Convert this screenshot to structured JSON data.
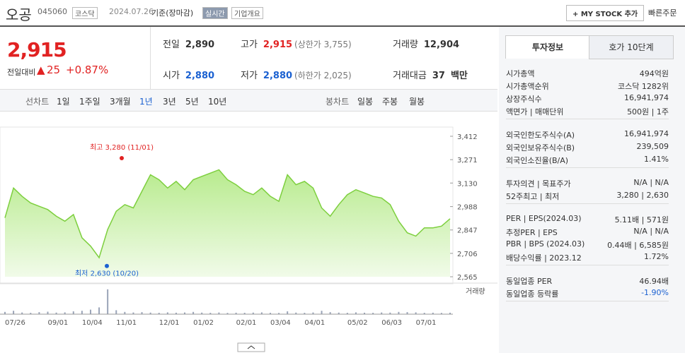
{
  "header": {
    "name": "오공",
    "code": "045060",
    "market": "코스닥",
    "date": "2024.07.26",
    "basis": "기준(장마감)",
    "realtime": "실시간",
    "overview": "기업개요",
    "mystock": "+ MY STOCK 추가",
    "quick_order": "빠른주문"
  },
  "quote": {
    "price": "2,915",
    "change_label": "전일대비",
    "change": "25",
    "rate": "+0.87%",
    "cells": [
      {
        "label": "전일",
        "value": "2,890"
      },
      {
        "label": "고가",
        "value": "2,915",
        "note": "(상한가 3,755)"
      },
      {
        "label": "거래량",
        "value": "12,904"
      },
      {
        "label": "시가",
        "value": "2,880"
      },
      {
        "label": "저가",
        "value": "2,880",
        "note": "(하한가 2,025)"
      },
      {
        "label": "거래대금",
        "value": "37",
        "unit": "백만"
      }
    ]
  },
  "periods": {
    "line_label": "선차트",
    "line": [
      "1일",
      "1주일",
      "3개월",
      "1년",
      "3년",
      "5년",
      "10년"
    ],
    "candle_label": "봉차트",
    "candle": [
      "일봉",
      "주봉",
      "월봉"
    ]
  },
  "chart_data": [
    {
      "type": "area",
      "color": "#7dcf3e",
      "categories": [
        "07/26",
        null,
        null,
        null,
        null,
        "09/01",
        null,
        null,
        null,
        "10/04",
        null,
        null,
        null,
        "11/01",
        null,
        null,
        null,
        null,
        "12/01",
        null,
        null,
        null,
        "01/02",
        null,
        null,
        null,
        null,
        "02/01",
        null,
        null,
        null,
        "03/04",
        null,
        null,
        null,
        "04/01",
        null,
        null,
        null,
        null,
        "05/02",
        null,
        null,
        null,
        "06/03",
        null,
        null,
        null,
        "07/01",
        null,
        null,
        null,
        null
      ],
      "values": [
        2920,
        3100,
        3050,
        3010,
        2990,
        2970,
        2930,
        2900,
        2940,
        2800,
        2750,
        2680,
        2850,
        2960,
        3000,
        2980,
        3080,
        3180,
        3150,
        3100,
        3140,
        3090,
        3150,
        3170,
        3190,
        3210,
        3150,
        3120,
        3080,
        3060,
        3100,
        3050,
        3020,
        3180,
        3120,
        3140,
        3100,
        2980,
        2930,
        3000,
        3060,
        3090,
        3070,
        3050,
        3040,
        3000,
        2900,
        2830,
        2810,
        2860,
        2860,
        2870,
        2915
      ],
      "ylim": [
        2565,
        3412
      ],
      "yticks": [
        {
          "value": 2565,
          "label": "2,565"
        },
        {
          "value": 2706,
          "label": "2,706"
        },
        {
          "value": 2847,
          "label": "2,847"
        },
        {
          "value": 2988,
          "label": "2,988"
        },
        {
          "value": 3130,
          "label": "3,130"
        },
        {
          "value": 3271,
          "label": "3,271"
        },
        {
          "value": 3412,
          "label": "3,412"
        }
      ],
      "annotations": [
        {
          "text": "최고 3,280 (11/01)",
          "value": 3280,
          "color": "#e12222"
        },
        {
          "text": "최저 2,630 (10/20)",
          "value": 2630,
          "color": "#1b61d1"
        }
      ]
    },
    {
      "type": "bar",
      "label": "거래량",
      "color": "#9aa4b8",
      "ylim": [
        0,
        250000
      ],
      "values": [
        20000,
        30000,
        15000,
        12000,
        18000,
        22000,
        14000,
        16000,
        25000,
        30000,
        40000,
        60000,
        220000,
        35000,
        20000,
        15000,
        18000,
        14000,
        12000,
        16000,
        13000,
        15000,
        20000,
        14000,
        12000,
        15000,
        11000,
        13000,
        12000,
        14000,
        16000,
        12000,
        11000,
        25000,
        14000,
        12000,
        15000,
        30000,
        18000,
        14000,
        12000,
        16000,
        13000,
        12000,
        15000,
        14000,
        20000,
        18000,
        16000,
        12000,
        13000,
        11000,
        12904
      ]
    }
  ],
  "info": {
    "tabs": [
      "투자정보",
      "호가 10단계"
    ],
    "sections": [
      [
        {
          "label": "시가총액",
          "value": "494억원"
        },
        {
          "label": "시가총액순위",
          "value": "코스닥 1282위"
        },
        {
          "label": "상장주식수",
          "value": "16,941,974"
        },
        {
          "label": "액면가 | 매매단위",
          "value": "500원 | 1주"
        }
      ],
      [
        {
          "label": "외국인한도주식수(A)",
          "value": "16,941,974"
        },
        {
          "label": "외국인보유주식수(B)",
          "value": "239,509"
        },
        {
          "label": "외국인소진율(B/A)",
          "value": "1.41%"
        }
      ],
      [
        {
          "label": "투자의견 | 목표주가",
          "value": "N/A | N/A"
        },
        {
          "label": "52주최고 | 최저",
          "value": "3,280 | 2,630"
        }
      ],
      [
        {
          "label": "PER | EPS(2024.03)",
          "value": "5.11배 | 571원"
        },
        {
          "label": "추정PER | EPS",
          "value": "N/A | N/A"
        },
        {
          "label": "PBR | BPS (2024.03)",
          "value": "0.44배 | 6,585원"
        },
        {
          "label": "배당수익률 | 2023.12",
          "value": "1.72%"
        }
      ],
      [
        {
          "label": "동일업종 PER",
          "value": "46.94배"
        },
        {
          "label": "동일업종 등락률",
          "value": "-1.90%"
        }
      ]
    ]
  }
}
